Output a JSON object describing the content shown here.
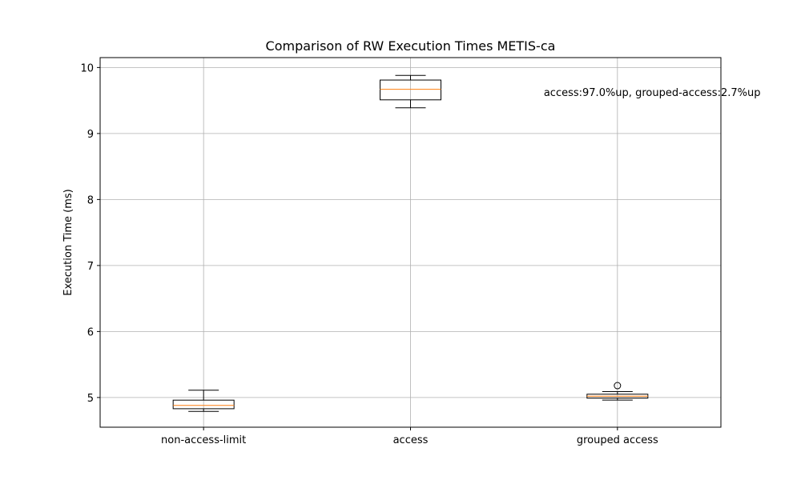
{
  "chart_data": {
    "type": "box",
    "title": "Comparison of RW Execution Times METIS-ca",
    "xlabel": "",
    "ylabel": "Execution Time (ms)",
    "ylim": [
      4.55,
      10.15
    ],
    "yticks": [
      5,
      6,
      7,
      8,
      9,
      10
    ],
    "grid": true,
    "categories": [
      "non-access-limit",
      "access",
      "grouped access"
    ],
    "boxes": [
      {
        "category": "non-access-limit",
        "whisker_low": 4.79,
        "q1": 4.83,
        "median": 4.88,
        "q3": 4.96,
        "whisker_high": 5.11,
        "outliers": []
      },
      {
        "category": "access",
        "whisker_low": 9.39,
        "q1": 9.51,
        "median": 9.67,
        "q3": 9.81,
        "whisker_high": 9.88,
        "outliers": []
      },
      {
        "category": "grouped access",
        "whisker_low": 4.96,
        "q1": 4.99,
        "median": 5.02,
        "q3": 5.05,
        "whisker_high": 5.09,
        "outliers": [
          5.18
        ]
      }
    ],
    "annotation": {
      "text": "access:97.0%up, grouped-access:2.7%up",
      "x_category": "grouped access",
      "y": 9.63
    },
    "colors": {
      "box": "#000000",
      "median": "#ff7f0e",
      "grid": "#b0b0b0"
    }
  }
}
